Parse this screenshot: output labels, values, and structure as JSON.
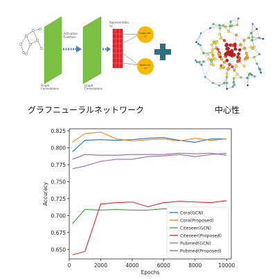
{
  "diagram": {
    "input_label": "Graph\nConvolutions",
    "middle_label": "Graph\nConvolutions",
    "activation_label": "Activation\nFunction",
    "representation_label": "Representatio\nns",
    "output_top": "Graph-lev\nel",
    "output_bottom": "Node-lev\nel"
  },
  "captions": {
    "left": "グラフニューラルネットワーク",
    "right": "中心性"
  },
  "chart_data": {
    "type": "line",
    "xlabel": "Epochs",
    "ylabel": "Accuracy",
    "xlim": [
      0,
      10300
    ],
    "ylim": [
      0.636,
      0.828
    ],
    "xticks": [
      0,
      2000,
      4000,
      6000,
      8000,
      10000
    ],
    "yticks": [
      0.65,
      0.675,
      0.7,
      0.725,
      0.75,
      0.775,
      0.8,
      0.825
    ],
    "legend_position": "lower-right",
    "x": [
      200,
      1000,
      2000,
      3000,
      4000,
      5000,
      6000,
      7000,
      8000,
      9000,
      10000
    ],
    "series": [
      {
        "name": "Cora(GCN)",
        "color": "#1f77b4",
        "values": [
          0.794,
          0.811,
          0.812,
          0.811,
          0.812,
          0.814,
          0.815,
          0.811,
          0.808,
          0.813,
          0.813
        ]
      },
      {
        "name": "Cora(Proposed)",
        "color": "#ff7f0e",
        "values": [
          0.808,
          0.821,
          0.823,
          0.813,
          0.81,
          0.812,
          0.813,
          0.81,
          0.814,
          0.811,
          0.813
        ]
      },
      {
        "name": "Citeseer(GCN)",
        "color": "#2ca02c",
        "values": [
          0.688,
          0.709,
          0.708,
          0.709,
          0.708,
          0.708,
          0.71,
          0.709,
          0.709,
          0.708,
          0.711
        ]
      },
      {
        "name": "Citeseer(Proposed)",
        "color": "#d62728",
        "values": [
          0.642,
          0.647,
          0.717,
          0.719,
          0.72,
          0.713,
          0.719,
          0.721,
          0.72,
          0.719,
          0.722
        ]
      },
      {
        "name": "Pubmed(GCN)",
        "color": "#9467bd",
        "values": [
          0.769,
          0.773,
          0.78,
          0.783,
          0.783,
          0.787,
          0.788,
          0.79,
          0.787,
          0.79,
          0.792
        ]
      },
      {
        "name": "Pubmed(Proposed)",
        "color": "#a05ab4",
        "values": [
          0.783,
          0.79,
          0.789,
          0.789,
          0.79,
          0.79,
          0.79,
          0.792,
          0.791,
          0.792,
          0.789
        ]
      }
    ]
  }
}
